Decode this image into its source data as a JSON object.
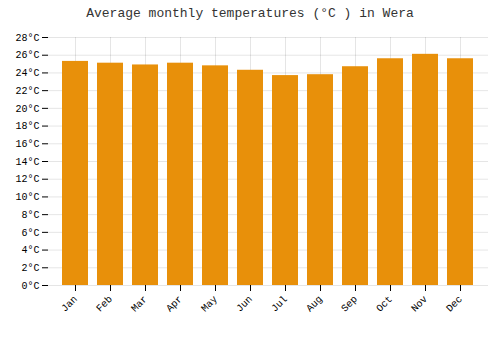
{
  "chart_data": {
    "type": "bar",
    "title": "Average monthly temperatures (°C ) in Wera",
    "categories": [
      "Jan",
      "Feb",
      "Mar",
      "Apr",
      "May",
      "Jun",
      "Jul",
      "Aug",
      "Sep",
      "Oct",
      "Nov",
      "Dec"
    ],
    "values": [
      25.3,
      25.1,
      24.9,
      25.1,
      24.8,
      24.3,
      23.7,
      23.8,
      24.7,
      25.6,
      26.1,
      25.6
    ],
    "color": "#E8900A",
    "ylim": [
      0,
      28
    ],
    "yticks": [
      {
        "value": 0,
        "label": "0°C"
      },
      {
        "value": 2,
        "label": "2°C"
      },
      {
        "value": 4,
        "label": "4°C"
      },
      {
        "value": 6,
        "label": "6°C"
      },
      {
        "value": 8,
        "label": "8°C"
      },
      {
        "value": 10,
        "label": "10°C"
      },
      {
        "value": 12,
        "label": "12°C"
      },
      {
        "value": 14,
        "label": "14°C"
      },
      {
        "value": 16,
        "label": "16°C"
      },
      {
        "value": 18,
        "label": "18°C"
      },
      {
        "value": 20,
        "label": "20°C"
      },
      {
        "value": 22,
        "label": "22°C"
      },
      {
        "value": 24,
        "label": "24°C"
      },
      {
        "value": 26,
        "label": "26°C"
      },
      {
        "value": 28,
        "label": "28°C"
      }
    ],
    "grid": true
  }
}
